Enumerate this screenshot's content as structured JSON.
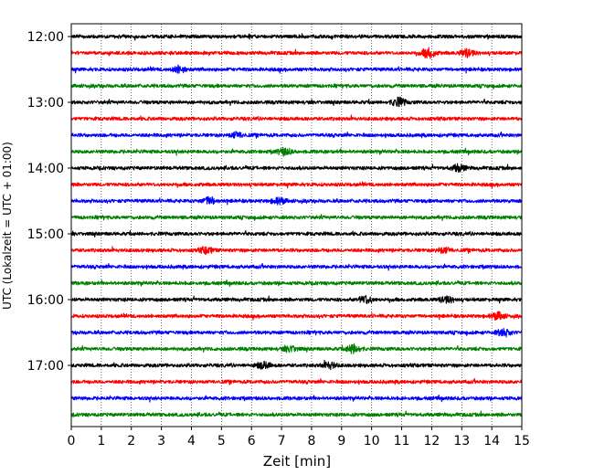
{
  "chart_data": {
    "type": "line",
    "title": "",
    "xlabel": "Zeit  [min]",
    "ylabel": "UTC (Lokalzeit = UTC + 01:00)",
    "xlim": [
      0,
      15
    ],
    "xticks": [
      "0",
      "1",
      "2",
      "3",
      "4",
      "5",
      "6",
      "7",
      "8",
      "9",
      "10",
      "11",
      "12",
      "13",
      "14",
      "15"
    ],
    "yticks": [
      "12:00",
      "13:00",
      "14:00",
      "15:00",
      "16:00",
      "17:00"
    ],
    "grid": "vertical dotted at each minute",
    "trace_minutes_each": 15,
    "trace_start_times": [
      "12:00",
      "12:15",
      "12:30",
      "12:45",
      "13:00",
      "13:15",
      "13:30",
      "13:45",
      "14:00",
      "14:15",
      "14:30",
      "14:45",
      "15:00",
      "15:15",
      "15:30",
      "15:45",
      "16:00",
      "16:15",
      "16:30",
      "16:45",
      "17:00",
      "17:15",
      "17:30",
      "17:45"
    ],
    "colors_cycle": [
      "#000000",
      "#ff0000",
      "#0000ff",
      "#008000"
    ],
    "events": [
      {
        "trace": 1,
        "minute": 11.9,
        "strength": 2.2
      },
      {
        "trace": 1,
        "minute": 13.2,
        "strength": 1.6
      },
      {
        "trace": 2,
        "minute": 3.6,
        "strength": 1.4
      },
      {
        "trace": 4,
        "minute": 10.9,
        "strength": 1.8
      },
      {
        "trace": 6,
        "minute": 5.5,
        "strength": 1.2
      },
      {
        "trace": 7,
        "minute": 7.1,
        "strength": 1.5
      },
      {
        "trace": 8,
        "minute": 12.9,
        "strength": 1.5
      },
      {
        "trace": 10,
        "minute": 4.6,
        "strength": 1.6
      },
      {
        "trace": 10,
        "minute": 6.9,
        "strength": 1.4
      },
      {
        "trace": 13,
        "minute": 4.5,
        "strength": 1.3
      },
      {
        "trace": 13,
        "minute": 12.4,
        "strength": 1.2
      },
      {
        "trace": 16,
        "minute": 9.8,
        "strength": 1.6
      },
      {
        "trace": 16,
        "minute": 12.5,
        "strength": 1.4
      },
      {
        "trace": 17,
        "minute": 14.2,
        "strength": 1.5
      },
      {
        "trace": 18,
        "minute": 14.4,
        "strength": 1.6
      },
      {
        "trace": 19,
        "minute": 7.3,
        "strength": 1.3
      },
      {
        "trace": 19,
        "minute": 9.4,
        "strength": 1.9
      },
      {
        "trace": 20,
        "minute": 6.4,
        "strength": 1.4
      },
      {
        "trace": 20,
        "minute": 8.6,
        "strength": 1.3
      }
    ]
  }
}
